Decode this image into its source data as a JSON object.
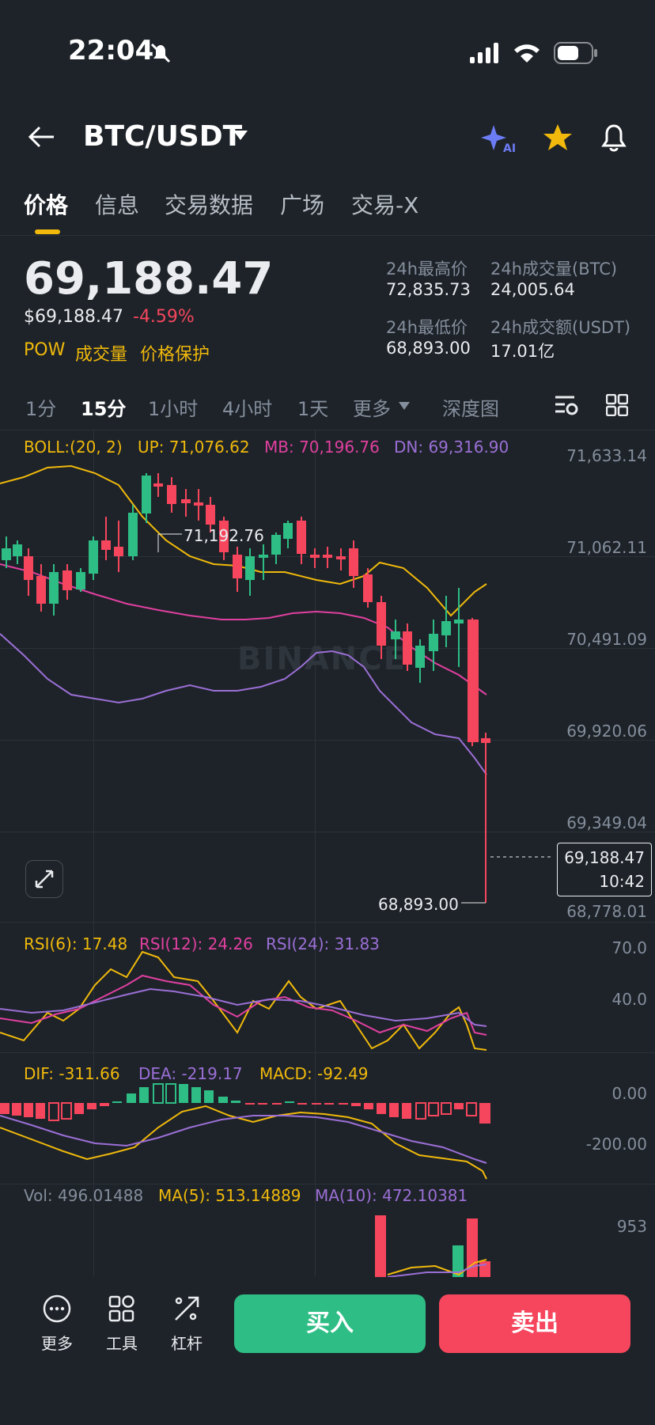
{
  "status_bar": {
    "time": "22:04"
  },
  "header": {
    "pair": "BTC/USDT"
  },
  "tabs": [
    "价格",
    "信息",
    "交易数据",
    "广场",
    "交易-X"
  ],
  "price": {
    "last": "69,188.47",
    "usd": "$69,188.47",
    "change": "-4.59%",
    "tags": [
      "POW",
      "成交量",
      "价格保护"
    ]
  },
  "stats": {
    "high_label": "24h最高价",
    "high": "72,835.73",
    "vol_btc_label": "24h成交量(BTC)",
    "vol_btc": "24,005.64",
    "low_label": "24h最低价",
    "low": "68,893.00",
    "vol_usdt_label": "24h成交额(USDT)",
    "vol_usdt": "17.01亿"
  },
  "intervals": [
    "1分",
    "15分",
    "1小时",
    "4小时",
    "1天",
    "更多",
    "深度图"
  ],
  "boll": {
    "label": "BOLL:(20, 2)",
    "up": "UP: 71,076.62",
    "mb": "MB: 70,196.76",
    "dn": "DN: 69,316.90"
  },
  "price_axis": [
    "71,633.14",
    "71,062.11",
    "70,491.09",
    "69,920.06",
    "69,349.04",
    "68,778.01"
  ],
  "chart_marks": {
    "high": "71,192.76",
    "low": "68,893.00",
    "current": "69,188.47",
    "countdown": "10:42"
  },
  "watermark": "BINANCE",
  "rsi": {
    "r6": "RSI(6): 17.48",
    "r12": "RSI(12): 24.26",
    "r24": "RSI(24): 31.83",
    "axis": [
      "70.0",
      "40.0"
    ]
  },
  "macd": {
    "dif": "DIF: -311.66",
    "dea": "DEA: -219.17",
    "macd": "MACD: -92.49",
    "axis": [
      "0.00",
      "-200.00"
    ]
  },
  "vol": {
    "vol": "Vol: 496.01488",
    "ma5": "MA(5): 513.14889",
    "ma10": "MA(10): 472.10381",
    "axis": "953"
  },
  "bottom": {
    "more": "更多",
    "tools": "工具",
    "leverage": "杠杆",
    "buy": "买入",
    "sell": "卖出"
  },
  "colors": {
    "up": "#2ebd85",
    "down": "#f6465d",
    "accent": "#f0b90b",
    "boll_mb": "#e040a0",
    "boll_dn": "#9b6fd6"
  }
}
